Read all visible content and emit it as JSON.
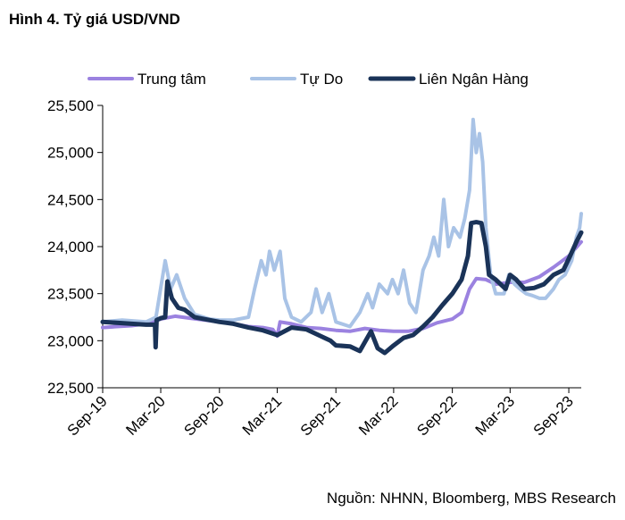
{
  "title": "Hình 4. Tỷ giá USD/VND",
  "source": "Nguồn: NHNN, Bloomberg, MBS Research",
  "chart_data": {
    "type": "line",
    "ylim": [
      22500,
      25500
    ],
    "yticks": [
      22500,
      23000,
      23500,
      24000,
      24500,
      25000,
      25500
    ],
    "ytick_labels": [
      "22,500",
      "23,000",
      "23,500",
      "24,000",
      "24,500",
      "25,000",
      "25,500"
    ],
    "xlim": [
      "2019-09-01",
      "2023-10-10"
    ],
    "xticks": [
      "2019-09-01",
      "2020-03-01",
      "2020-09-01",
      "2021-03-01",
      "2021-09-01",
      "2022-03-01",
      "2022-09-01",
      "2023-03-01",
      "2023-09-01"
    ],
    "xtick_labels": [
      "Sep-19",
      "Mar-20",
      "Sep-20",
      "Mar-21",
      "Sep-21",
      "Mar-22",
      "Sep-22",
      "Mar-23",
      "Sep-23"
    ],
    "legend_position": "top",
    "series": [
      {
        "name": "Trung tâm",
        "color": "#9b82e0",
        "points": [
          [
            "2019-09-01",
            23140
          ],
          [
            "2019-10-15",
            23150
          ],
          [
            "2019-12-01",
            23160
          ],
          [
            "2020-01-15",
            23180
          ],
          [
            "2020-03-01",
            23230
          ],
          [
            "2020-04-15",
            23260
          ],
          [
            "2020-06-01",
            23240
          ],
          [
            "2020-07-15",
            23220
          ],
          [
            "2020-09-01",
            23200
          ],
          [
            "2020-10-15",
            23180
          ],
          [
            "2020-12-01",
            23150
          ],
          [
            "2021-01-15",
            23140
          ],
          [
            "2021-02-15",
            23120
          ],
          [
            "2021-03-01",
            23050
          ],
          [
            "2021-03-10",
            23200
          ],
          [
            "2021-04-15",
            23180
          ],
          [
            "2021-06-01",
            23140
          ],
          [
            "2021-07-15",
            23130
          ],
          [
            "2021-09-01",
            23110
          ],
          [
            "2021-10-15",
            23100
          ],
          [
            "2021-12-01",
            23130
          ],
          [
            "2022-01-15",
            23110
          ],
          [
            "2022-03-01",
            23100
          ],
          [
            "2022-04-15",
            23100
          ],
          [
            "2022-06-01",
            23130
          ],
          [
            "2022-07-15",
            23190
          ],
          [
            "2022-09-01",
            23230
          ],
          [
            "2022-09-30",
            23300
          ],
          [
            "2022-10-25",
            23550
          ],
          [
            "2022-11-15",
            23660
          ],
          [
            "2022-12-15",
            23650
          ],
          [
            "2023-01-15",
            23600
          ],
          [
            "2023-03-01",
            23620
          ],
          [
            "2023-04-15",
            23620
          ],
          [
            "2023-06-01",
            23680
          ],
          [
            "2023-07-15",
            23780
          ],
          [
            "2023-09-01",
            23900
          ],
          [
            "2023-10-10",
            24050
          ]
        ]
      },
      {
        "name": "Tự Do",
        "color": "#a9c3e6",
        "points": [
          [
            "2019-09-01",
            23200
          ],
          [
            "2019-11-01",
            23220
          ],
          [
            "2020-01-15",
            23200
          ],
          [
            "2020-02-15",
            23250
          ],
          [
            "2020-03-15",
            23850
          ],
          [
            "2020-04-01",
            23550
          ],
          [
            "2020-04-20",
            23700
          ],
          [
            "2020-05-15",
            23450
          ],
          [
            "2020-06-15",
            23280
          ],
          [
            "2020-08-01",
            23230
          ],
          [
            "2020-09-01",
            23220
          ],
          [
            "2020-10-15",
            23220
          ],
          [
            "2020-12-01",
            23250
          ],
          [
            "2020-12-20",
            23550
          ],
          [
            "2021-01-10",
            23850
          ],
          [
            "2021-01-25",
            23700
          ],
          [
            "2021-02-05",
            23950
          ],
          [
            "2021-02-20",
            23750
          ],
          [
            "2021-03-10",
            23950
          ],
          [
            "2021-03-25",
            23450
          ],
          [
            "2021-04-15",
            23250
          ],
          [
            "2021-05-15",
            23200
          ],
          [
            "2021-06-15",
            23300
          ],
          [
            "2021-07-01",
            23550
          ],
          [
            "2021-07-20",
            23300
          ],
          [
            "2021-08-10",
            23500
          ],
          [
            "2021-09-01",
            23200
          ],
          [
            "2021-10-15",
            23150
          ],
          [
            "2021-11-15",
            23300
          ],
          [
            "2021-12-10",
            23500
          ],
          [
            "2021-12-25",
            23350
          ],
          [
            "2022-01-15",
            23600
          ],
          [
            "2022-02-10",
            23500
          ],
          [
            "2022-02-25",
            23650
          ],
          [
            "2022-03-15",
            23500
          ],
          [
            "2022-04-01",
            23750
          ],
          [
            "2022-04-20",
            23400
          ],
          [
            "2022-05-10",
            23300
          ],
          [
            "2022-06-01",
            23750
          ],
          [
            "2022-06-20",
            23900
          ],
          [
            "2022-07-05",
            24100
          ],
          [
            "2022-07-20",
            23900
          ],
          [
            "2022-08-05",
            24500
          ],
          [
            "2022-08-20",
            24000
          ],
          [
            "2022-09-05",
            24200
          ],
          [
            "2022-09-25",
            24100
          ],
          [
            "2022-10-10",
            24300
          ],
          [
            "2022-10-25",
            24600
          ],
          [
            "2022-11-05",
            25350
          ],
          [
            "2022-11-15",
            25000
          ],
          [
            "2022-11-25",
            25200
          ],
          [
            "2022-12-05",
            24900
          ],
          [
            "2022-12-15",
            24200
          ],
          [
            "2022-12-30",
            23700
          ],
          [
            "2023-01-15",
            23500
          ],
          [
            "2023-02-10",
            23500
          ],
          [
            "2023-02-25",
            23700
          ],
          [
            "2023-03-15",
            23600
          ],
          [
            "2023-04-01",
            23550
          ],
          [
            "2023-04-20",
            23500
          ],
          [
            "2023-05-10",
            23480
          ],
          [
            "2023-06-01",
            23450
          ],
          [
            "2023-06-20",
            23450
          ],
          [
            "2023-07-15",
            23550
          ],
          [
            "2023-08-01",
            23650
          ],
          [
            "2023-08-20",
            23700
          ],
          [
            "2023-09-10",
            23850
          ],
          [
            "2023-09-25",
            24100
          ],
          [
            "2023-10-05",
            24200
          ],
          [
            "2023-10-10",
            24350
          ]
        ]
      },
      {
        "name": "Liên Ngân Hàng",
        "color": "#1a3358",
        "points": [
          [
            "2019-09-01",
            23200
          ],
          [
            "2019-10-15",
            23190
          ],
          [
            "2019-12-01",
            23180
          ],
          [
            "2020-01-15",
            23170
          ],
          [
            "2020-02-12",
            23170
          ],
          [
            "2020-02-14",
            22930
          ],
          [
            "2020-02-17",
            23220
          ],
          [
            "2020-03-01",
            23240
          ],
          [
            "2020-03-15",
            23250
          ],
          [
            "2020-03-22",
            23630
          ],
          [
            "2020-04-05",
            23450
          ],
          [
            "2020-04-25",
            23350
          ],
          [
            "2020-05-15",
            23330
          ],
          [
            "2020-06-15",
            23250
          ],
          [
            "2020-07-15",
            23230
          ],
          [
            "2020-09-01",
            23200
          ],
          [
            "2020-10-15",
            23180
          ],
          [
            "2020-12-01",
            23140
          ],
          [
            "2021-01-15",
            23110
          ],
          [
            "2021-03-01",
            23060
          ],
          [
            "2021-04-15",
            23140
          ],
          [
            "2021-06-01",
            23120
          ],
          [
            "2021-07-15",
            23050
          ],
          [
            "2021-08-15",
            23000
          ],
          [
            "2021-09-01",
            22950
          ],
          [
            "2021-10-15",
            22940
          ],
          [
            "2021-11-15",
            22890
          ],
          [
            "2021-12-20",
            23100
          ],
          [
            "2022-01-10",
            22920
          ],
          [
            "2022-02-01",
            22870
          ],
          [
            "2022-03-01",
            22950
          ],
          [
            "2022-04-01",
            23030
          ],
          [
            "2022-05-01",
            23060
          ],
          [
            "2022-06-01",
            23150
          ],
          [
            "2022-07-01",
            23250
          ],
          [
            "2022-08-01",
            23380
          ],
          [
            "2022-09-01",
            23500
          ],
          [
            "2022-09-30",
            23650
          ],
          [
            "2022-10-20",
            23900
          ],
          [
            "2022-10-30",
            24250
          ],
          [
            "2022-11-15",
            24260
          ],
          [
            "2022-12-01",
            24250
          ],
          [
            "2022-12-15",
            24000
          ],
          [
            "2022-12-25",
            23700
          ],
          [
            "2023-01-15",
            23650
          ],
          [
            "2023-02-15",
            23550
          ],
          [
            "2023-03-01",
            23700
          ],
          [
            "2023-03-20",
            23650
          ],
          [
            "2023-04-15",
            23550
          ],
          [
            "2023-05-15",
            23560
          ],
          [
            "2023-06-15",
            23600
          ],
          [
            "2023-07-15",
            23700
          ],
          [
            "2023-08-15",
            23750
          ],
          [
            "2023-09-05",
            23900
          ],
          [
            "2023-09-25",
            24050
          ],
          [
            "2023-10-10",
            24150
          ]
        ]
      }
    ]
  }
}
